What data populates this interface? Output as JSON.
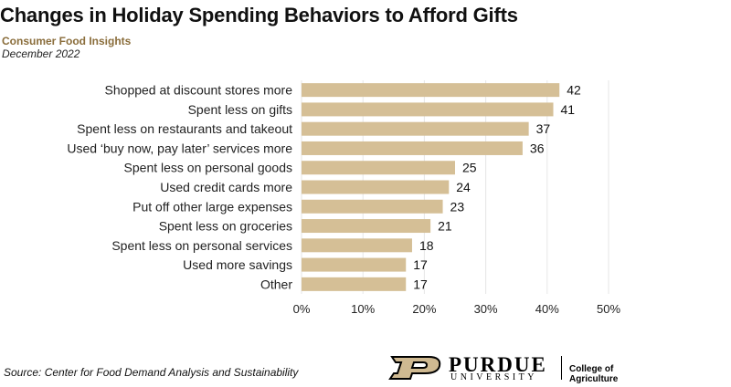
{
  "title": "Changes in Holiday Spending Behaviors to Afford Gifts",
  "subtitle": "Consumer Food Insights",
  "date": "December 2022",
  "source": "Source:  Center for Food Demand Analysis and Sustainability",
  "logo": {
    "name": "PURDUE",
    "sub": "UNIVERSITY",
    "college": "College of Agriculture"
  },
  "colors": {
    "bar": "#d5bf96",
    "grid": "#e6e6e6",
    "subtitle": "#8a6d3b"
  },
  "chart_data": {
    "type": "bar",
    "orientation": "horizontal",
    "categories": [
      "Shopped at discount stores more",
      "Spent less on gifts",
      "Spent less on restaurants and takeout",
      "Used ‘buy now, pay later’ services more",
      "Spent less on personal goods",
      "Used credit cards more",
      "Put off other large expenses",
      "Spent less on groceries",
      "Spent less on personal services",
      "Used more savings",
      "Other"
    ],
    "values": [
      42,
      41,
      37,
      36,
      25,
      24,
      23,
      21,
      18,
      17,
      17
    ],
    "xlim": [
      0,
      50
    ],
    "ticks": [
      "0%",
      "10%",
      "20%",
      "30%",
      "40%",
      "50%"
    ],
    "grid": true
  }
}
